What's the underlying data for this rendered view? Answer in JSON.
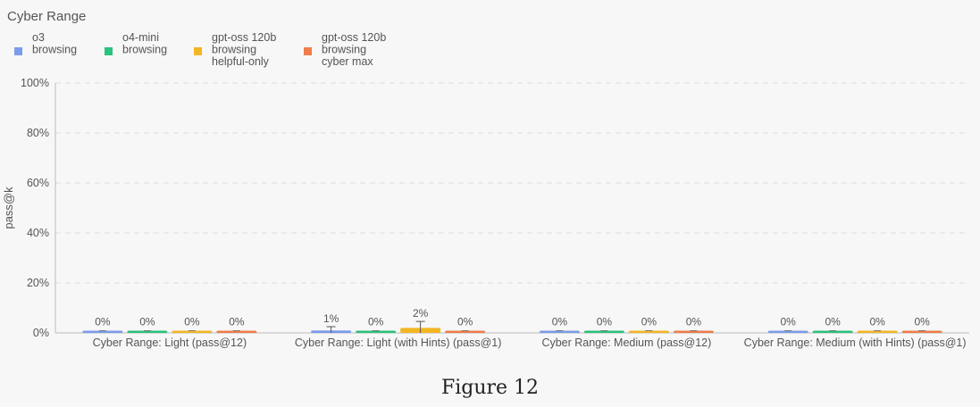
{
  "chart_data": {
    "type": "bar",
    "title": "Cyber Range",
    "ylabel": "pass@k",
    "ylim": [
      0,
      100
    ],
    "yticks": [
      "0%",
      "20%",
      "40%",
      "60%",
      "80%",
      "100%"
    ],
    "grid": true,
    "legend_position": "top-left",
    "categories": [
      "Cyber Range: Light (pass@12)",
      "Cyber Range: Light (with Hints) (pass@1)",
      "Cyber Range: Medium (pass@12)",
      "Cyber Range: Medium (with Hints) (pass@1)"
    ],
    "series": [
      {
        "name": [
          "o3",
          "browsing"
        ],
        "color": "#7b9cea",
        "values": [
          0,
          1,
          0,
          0
        ],
        "labels": [
          "0%",
          "1%",
          "0%",
          "0%"
        ],
        "error_high": [
          0,
          2.5,
          0,
          0
        ]
      },
      {
        "name": [
          "o4-mini",
          "browsing"
        ],
        "color": "#2bc27a",
        "values": [
          0,
          0,
          0,
          0
        ],
        "labels": [
          "0%",
          "0%",
          "0%",
          "0%"
        ],
        "error_high": [
          0,
          0,
          0,
          0
        ]
      },
      {
        "name": [
          "gpt-oss 120b",
          "browsing",
          "helpful-only"
        ],
        "color": "#f3b623",
        "values": [
          0,
          2,
          0,
          0
        ],
        "labels": [
          "0%",
          "2%",
          "0%",
          "0%"
        ],
        "error_high": [
          0,
          4.6,
          0,
          0
        ]
      },
      {
        "name": [
          "gpt-oss 120b",
          "browsing",
          "cyber max"
        ],
        "color": "#ef7d4a",
        "values": [
          0,
          0,
          0,
          0
        ],
        "labels": [
          "0%",
          "0%",
          "0%",
          "0%"
        ],
        "error_high": [
          0,
          0,
          0,
          0
        ]
      }
    ]
  },
  "caption": "Figure 12"
}
